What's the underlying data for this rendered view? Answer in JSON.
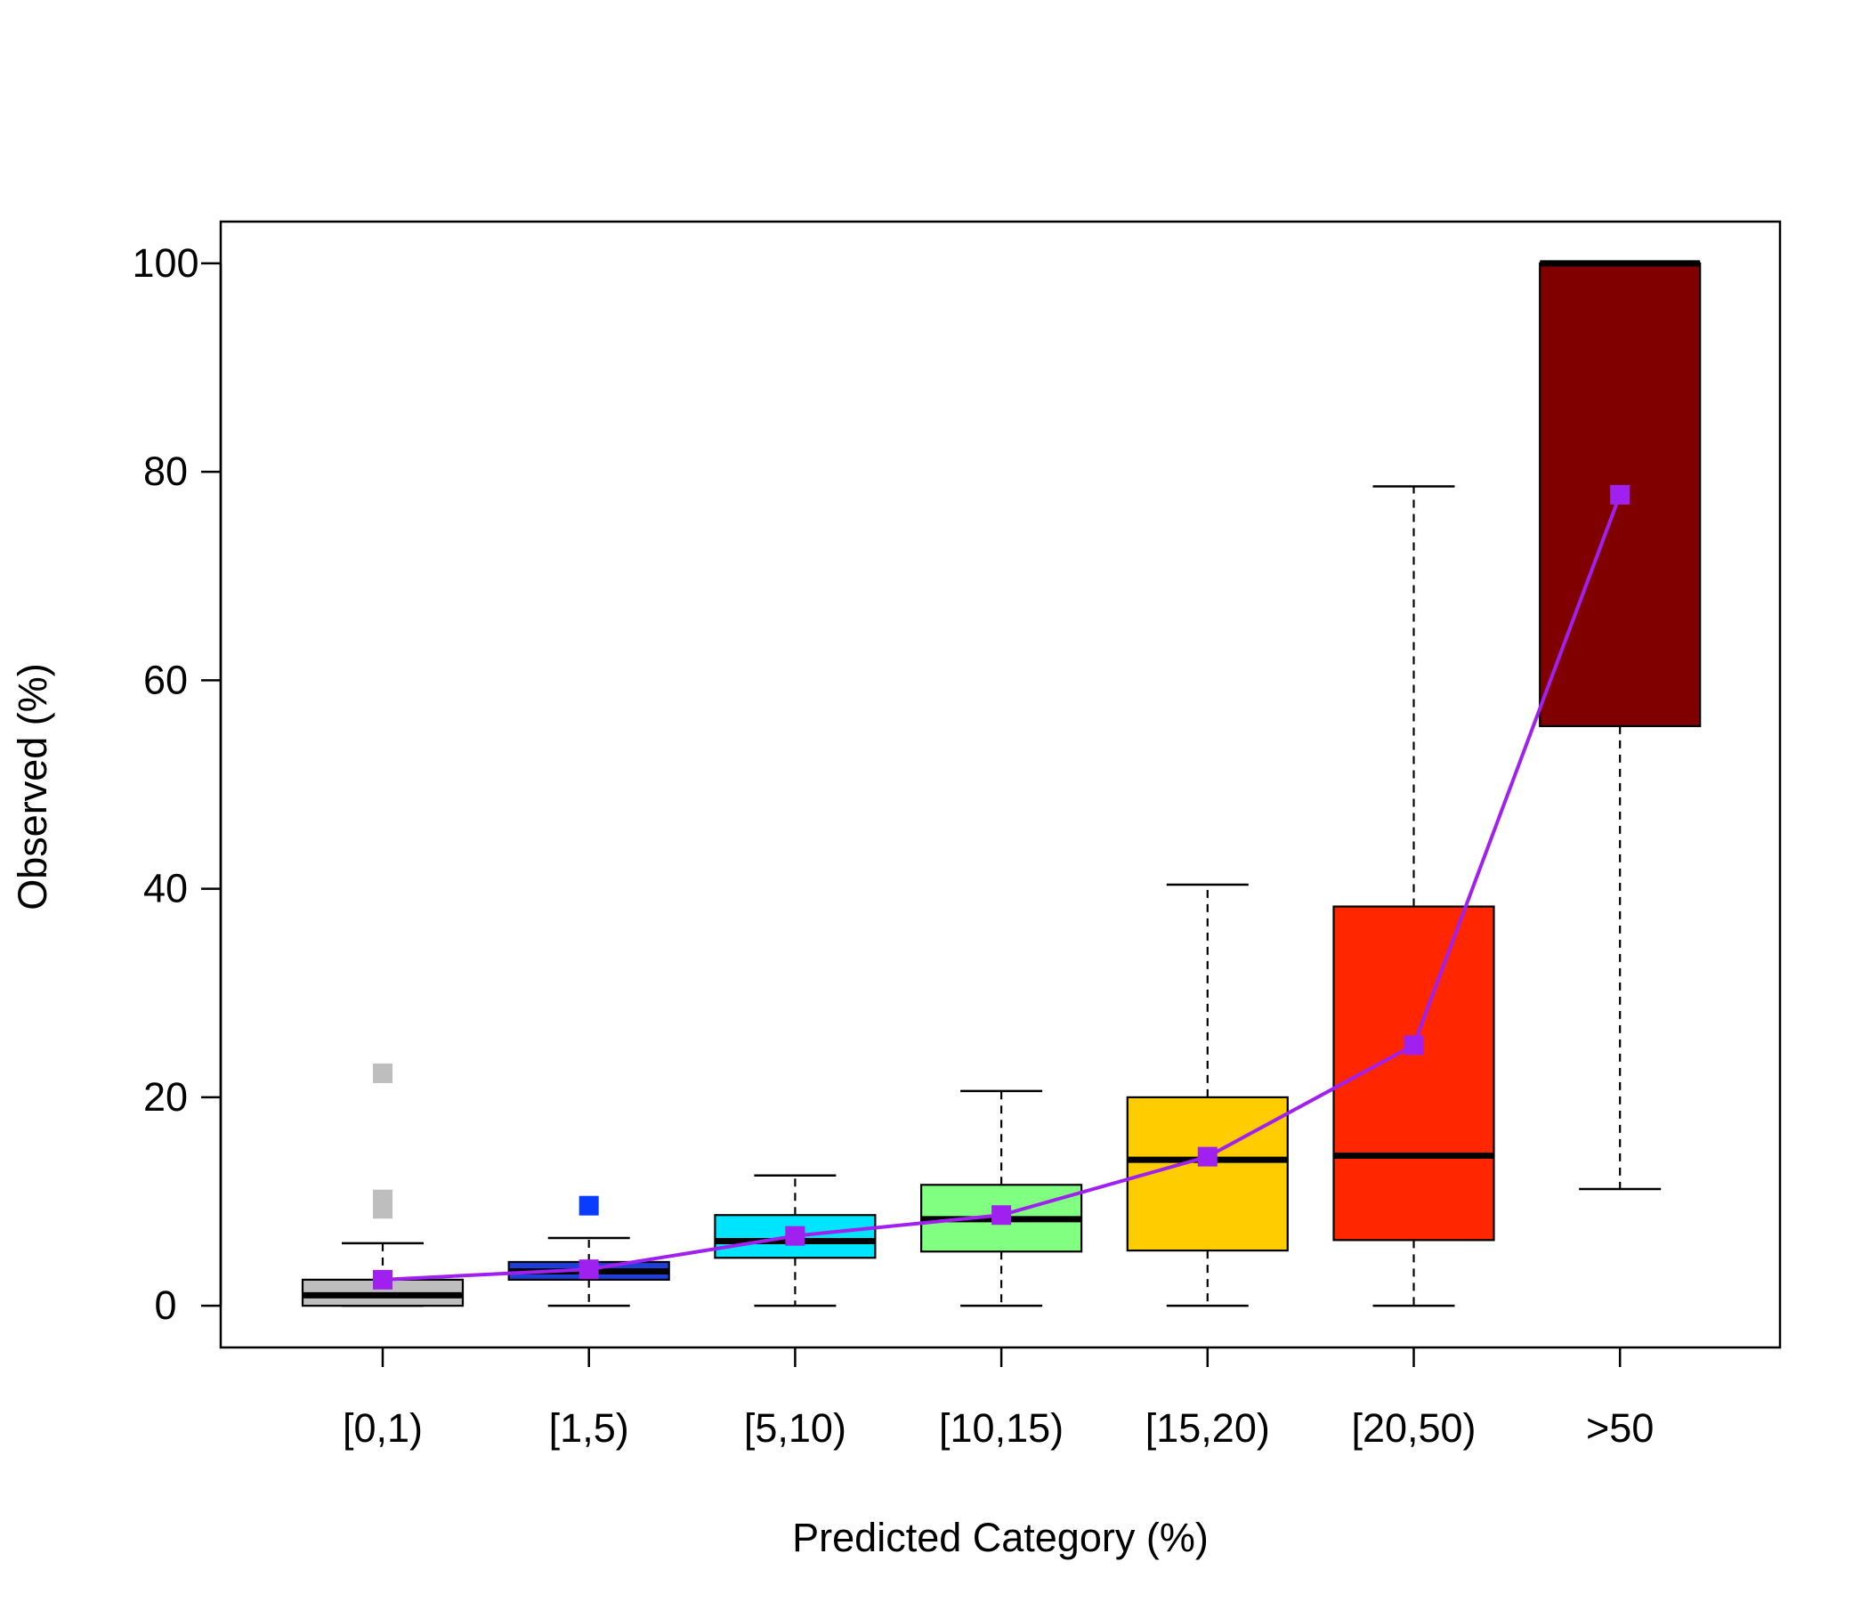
{
  "chart_data": {
    "type": "box",
    "title": "",
    "xlabel": "Predicted Category (%)",
    "ylabel": "Observed (%)",
    "ylim": [
      -4,
      104
    ],
    "yticks": [
      0,
      20,
      40,
      60,
      80,
      100
    ],
    "grid": false,
    "categories": [
      "[0,1)",
      "[1,5)",
      "[5,10)",
      "[10,15)",
      "[15,20)",
      "[20,50)",
      ">50"
    ],
    "boxes": [
      {
        "category": "[0,1)",
        "color": "#bebebe",
        "whisker_low": 0,
        "q1": 0.0,
        "median": 1.0,
        "q3": 2.5,
        "whisker_high": 6.0,
        "outliers": [
          9.3,
          10.2,
          22.3
        ]
      },
      {
        "category": "[1,5)",
        "color": "#1e3fd8",
        "whisker_low": 0,
        "q1": 2.5,
        "median": 3.3,
        "q3": 4.2,
        "whisker_high": 6.5,
        "outliers": [
          9.6
        ]
      },
      {
        "category": "[5,10)",
        "color": "#00e5ff",
        "whisker_low": 0,
        "q1": 4.6,
        "median": 6.2,
        "q3": 8.7,
        "whisker_high": 12.5,
        "outliers": []
      },
      {
        "category": "[10,15)",
        "color": "#80ff80",
        "whisker_low": 0,
        "q1": 5.2,
        "median": 8.3,
        "q3": 11.6,
        "whisker_high": 20.6,
        "outliers": []
      },
      {
        "category": "[15,20)",
        "color": "#ffcc00",
        "whisker_low": 0,
        "q1": 5.3,
        "median": 14.0,
        "q3": 20.0,
        "whisker_high": 40.4,
        "outliers": []
      },
      {
        "category": "[20,50)",
        "color": "#ff2600",
        "whisker_low": 0,
        "q1": 6.3,
        "median": 14.4,
        "q3": 38.3,
        "whisker_high": 78.6,
        "outliers": []
      },
      {
        "category": ">50",
        "color": "#800000",
        "whisker_low": 11.2,
        "q1": 55.6,
        "median": 100.0,
        "q3": 100.0,
        "whisker_high": 100.0,
        "outliers": []
      }
    ],
    "series": [
      {
        "type": "line",
        "color": "#a020f0",
        "values": [
          2.5,
          3.5,
          6.7,
          8.7,
          14.3,
          25.0,
          77.8
        ]
      }
    ]
  }
}
